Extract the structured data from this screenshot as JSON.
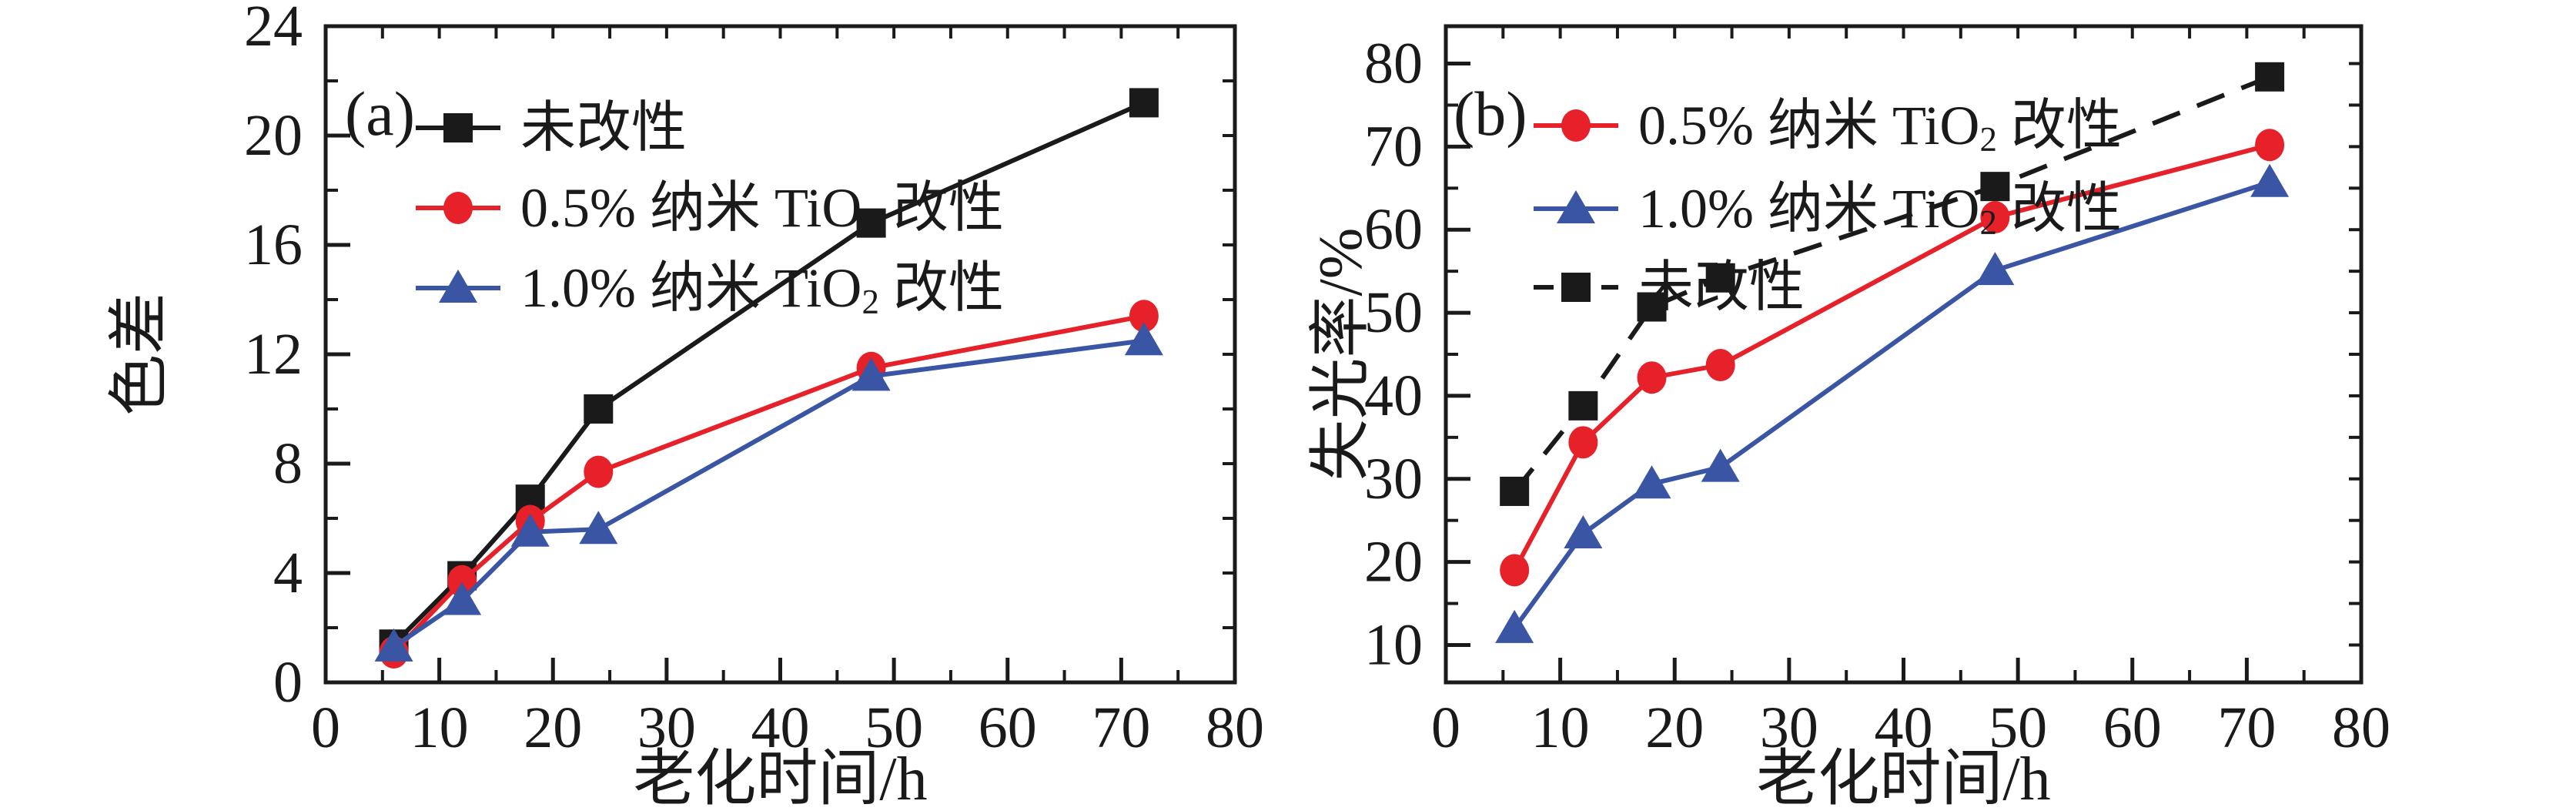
{
  "figure": {
    "background": "#ffffff"
  },
  "colors": {
    "unmodified": "#1a1a1a",
    "tio2_05": "#e62129",
    "tio2_10": "#3a55a4"
  },
  "chart_data": [
    {
      "id": "a",
      "type": "line",
      "panel_label": "(a)",
      "title": "",
      "xlabel": "老化时间/h",
      "ylabel": "色差",
      "xlim": [
        0,
        80
      ],
      "ylim": [
        0,
        24
      ],
      "xticks": [
        0,
        10,
        20,
        30,
        40,
        50,
        60,
        70,
        80
      ],
      "yticks": [
        0,
        4,
        8,
        12,
        16,
        20,
        24
      ],
      "x_minor_step": 5,
      "y_minor_step": 2,
      "grid": false,
      "legend_position": "top-left-inside",
      "x": [
        6,
        12,
        18,
        24,
        48,
        72
      ],
      "series": [
        {
          "name": "未改性",
          "name_parts": [
            "未改性",
            "",
            ""
          ],
          "color_key": "unmodified",
          "marker": "square",
          "line": "solid",
          "values": [
            1.4,
            3.9,
            6.7,
            10.0,
            16.8,
            21.2
          ]
        },
        {
          "name": "0.5% 纳米 TiO2 改性",
          "name_parts": [
            "0.5% 纳米 TiO",
            "2",
            " 改性"
          ],
          "color_key": "tio2_05",
          "marker": "circle",
          "line": "solid",
          "values": [
            1.1,
            3.7,
            5.9,
            7.7,
            11.5,
            13.4
          ]
        },
        {
          "name": "1.0% 纳米 TiO2 改性",
          "name_parts": [
            "1.0% 纳米 TiO",
            "2",
            " 改性"
          ],
          "color_key": "tio2_10",
          "marker": "triangle",
          "line": "solid",
          "values": [
            1.3,
            3.0,
            5.5,
            5.6,
            11.2,
            12.5
          ]
        }
      ]
    },
    {
      "id": "b",
      "type": "line",
      "panel_label": "(b)",
      "title": "",
      "xlabel": "老化时间/h",
      "ylabel": "失光率/%",
      "xlim": [
        0,
        80
      ],
      "ylim": [
        5.5,
        84.5
      ],
      "xticks": [
        0,
        10,
        20,
        30,
        40,
        50,
        60,
        70,
        80
      ],
      "yticks": [
        10,
        20,
        30,
        40,
        50,
        60,
        70,
        80
      ],
      "x_minor_step": 5,
      "y_minor_step": 5,
      "grid": false,
      "legend_position": "top-left-inside",
      "x": [
        6,
        12,
        18,
        24,
        48,
        72
      ],
      "series": [
        {
          "name": "0.5% 纳米 TiO2 改性",
          "name_parts": [
            "0.5% 纳米 TiO",
            "2",
            " 改性"
          ],
          "color_key": "tio2_05",
          "marker": "circle",
          "line": "solid",
          "values": [
            19.0,
            34.4,
            42.2,
            43.7,
            61.5,
            70.2
          ]
        },
        {
          "name": "1.0% 纳米 TiO2 改性",
          "name_parts": [
            "1.0% 纳米 TiO",
            "2",
            " 改性"
          ],
          "color_key": "tio2_10",
          "marker": "triangle",
          "line": "solid",
          "values": [
            12.0,
            23.4,
            29.4,
            31.4,
            55.1,
            65.7
          ]
        },
        {
          "name": "未改性",
          "name_parts": [
            "未改性",
            "",
            ""
          ],
          "color_key": "unmodified",
          "marker": "square",
          "line": "dashed",
          "values": [
            28.5,
            38.8,
            50.7,
            54.2,
            65.2,
            78.4
          ]
        }
      ]
    }
  ]
}
